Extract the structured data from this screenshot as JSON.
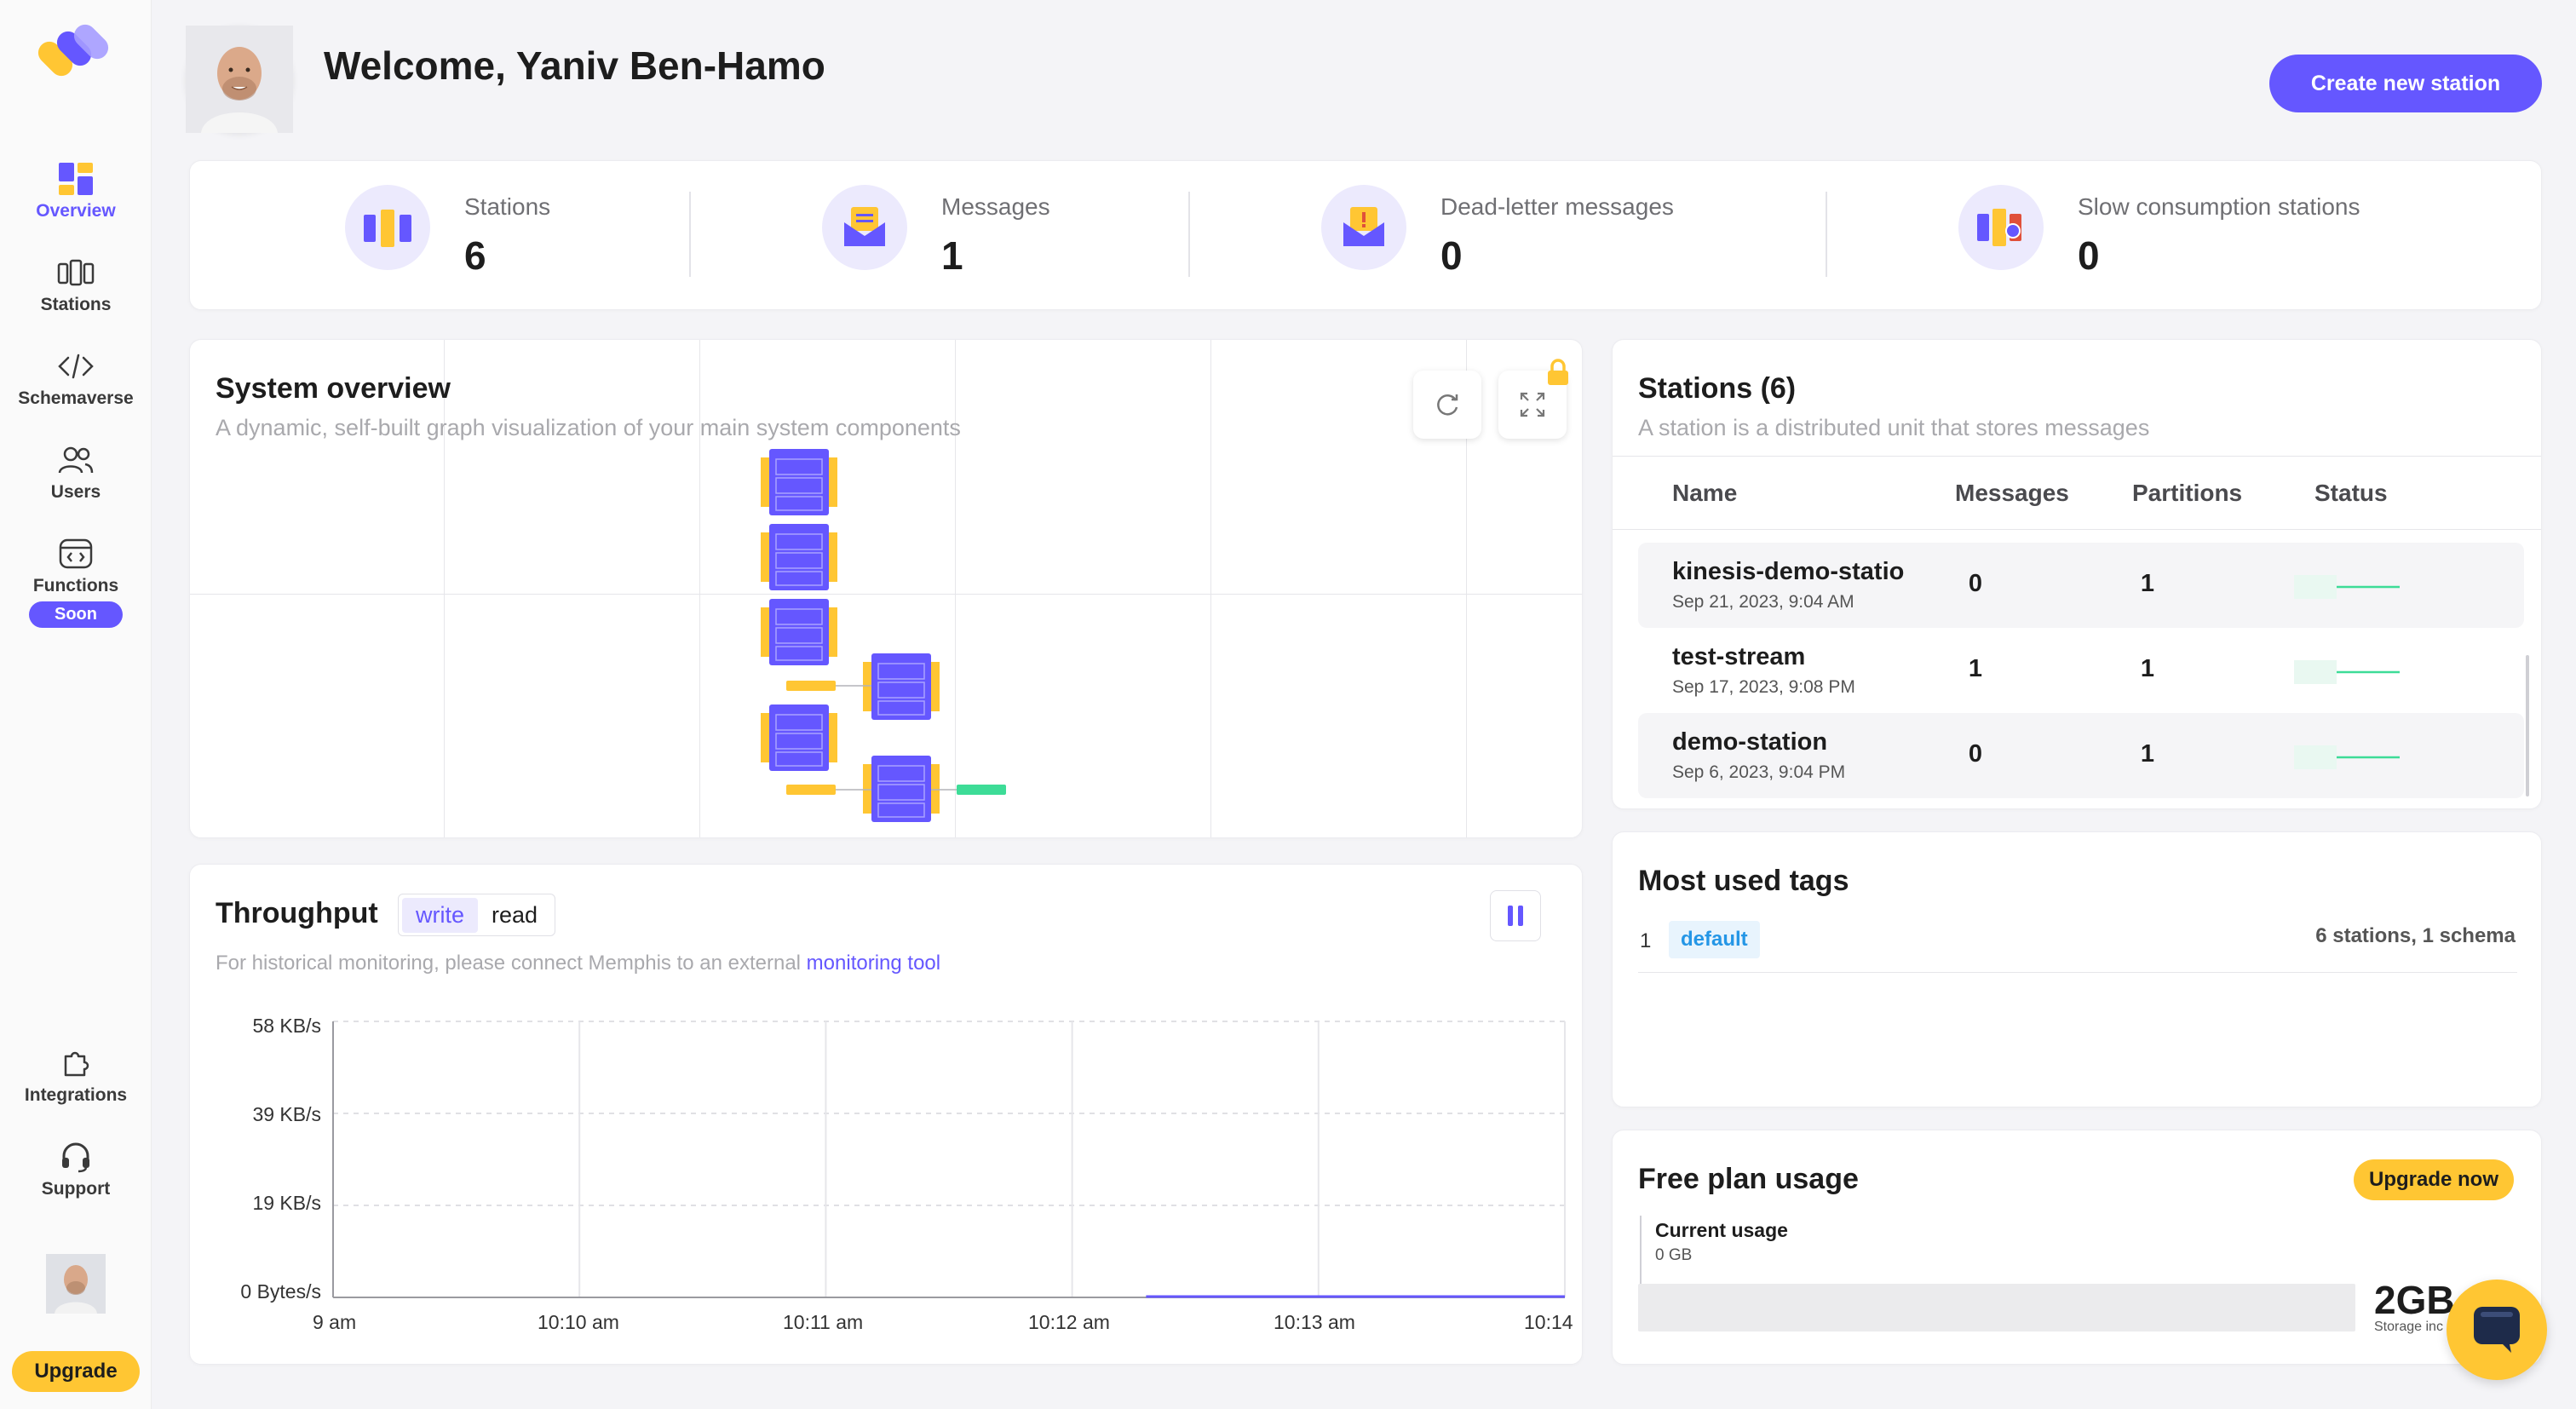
{
  "sidebar": {
    "items": [
      {
        "label": "Overview",
        "icon": "overview-icon"
      },
      {
        "label": "Stations",
        "icon": "stations-icon"
      },
      {
        "label": "Schemaverse",
        "icon": "code-icon"
      },
      {
        "label": "Users",
        "icon": "users-icon"
      },
      {
        "label": "Functions",
        "icon": "functions-icon",
        "badge": "Soon"
      },
      {
        "label": "Integrations",
        "icon": "puzzle-icon"
      },
      {
        "label": "Support",
        "icon": "headset-icon"
      }
    ],
    "upgrade_label": "Upgrade"
  },
  "header": {
    "welcome": "Welcome, Yaniv Ben-Hamo",
    "create_button": "Create new station"
  },
  "kpis": [
    {
      "label": "Stations",
      "value": "6",
      "icon": "stations-kpi-icon"
    },
    {
      "label": "Messages",
      "value": "1",
      "icon": "messages-kpi-icon"
    },
    {
      "label": "Dead-letter messages",
      "value": "0",
      "icon": "dead-letter-kpi-icon"
    },
    {
      "label": "Slow consumption stations",
      "value": "0",
      "icon": "slow-consumption-kpi-icon"
    }
  ],
  "system_overview": {
    "title": "System overview",
    "subtitle": "A dynamic, self-built graph visualization of your main system components"
  },
  "stations_panel": {
    "title": "Stations (6)",
    "subtitle": "A station is a distributed unit that stores messages",
    "columns": [
      "Name",
      "Messages",
      "Partitions",
      "Status"
    ],
    "rows": [
      {
        "name": "kinesis-demo-statio",
        "date": "Sep 21, 2023, 9:04 AM",
        "messages": "0",
        "partitions": "1"
      },
      {
        "name": "test-stream",
        "date": "Sep 17, 2023, 9:08 PM",
        "messages": "1",
        "partitions": "1"
      },
      {
        "name": "demo-station",
        "date": "Sep 6, 2023, 9:04 PM",
        "messages": "0",
        "partitions": "1"
      }
    ]
  },
  "throughput": {
    "title": "Throughput",
    "toggle": [
      "write",
      "read"
    ],
    "note": "For historical monitoring, please connect Memphis to an external ",
    "note_link": "monitoring tool"
  },
  "chart_data": {
    "type": "line",
    "title": "Throughput",
    "x": [
      "9 am",
      "10:10 am",
      "10:11 am",
      "10:12 am",
      "10:13 am",
      "10:14"
    ],
    "series": [
      {
        "name": "write",
        "values": [
          0,
          0,
          0,
          0,
          0,
          0
        ]
      }
    ],
    "yticks": [
      "0 Bytes/s",
      "19 KB/s",
      "39 KB/s",
      "58 KB/s"
    ],
    "grid": true
  },
  "tags": {
    "title": "Most used tags",
    "rows": [
      {
        "index": "1",
        "tag": "default",
        "usage": "6 stations, 1 schema"
      }
    ]
  },
  "plan": {
    "title": "Free plan usage",
    "upgrade": "Upgrade now",
    "current_label": "Current usage",
    "current_value": "0 GB",
    "limit": "2GB",
    "limit_sub": "Storage inc",
    "usage_fraction": 0
  },
  "colors": {
    "accent": "#6557ff",
    "yellow": "#ffc633",
    "green": "#3ddc97"
  }
}
